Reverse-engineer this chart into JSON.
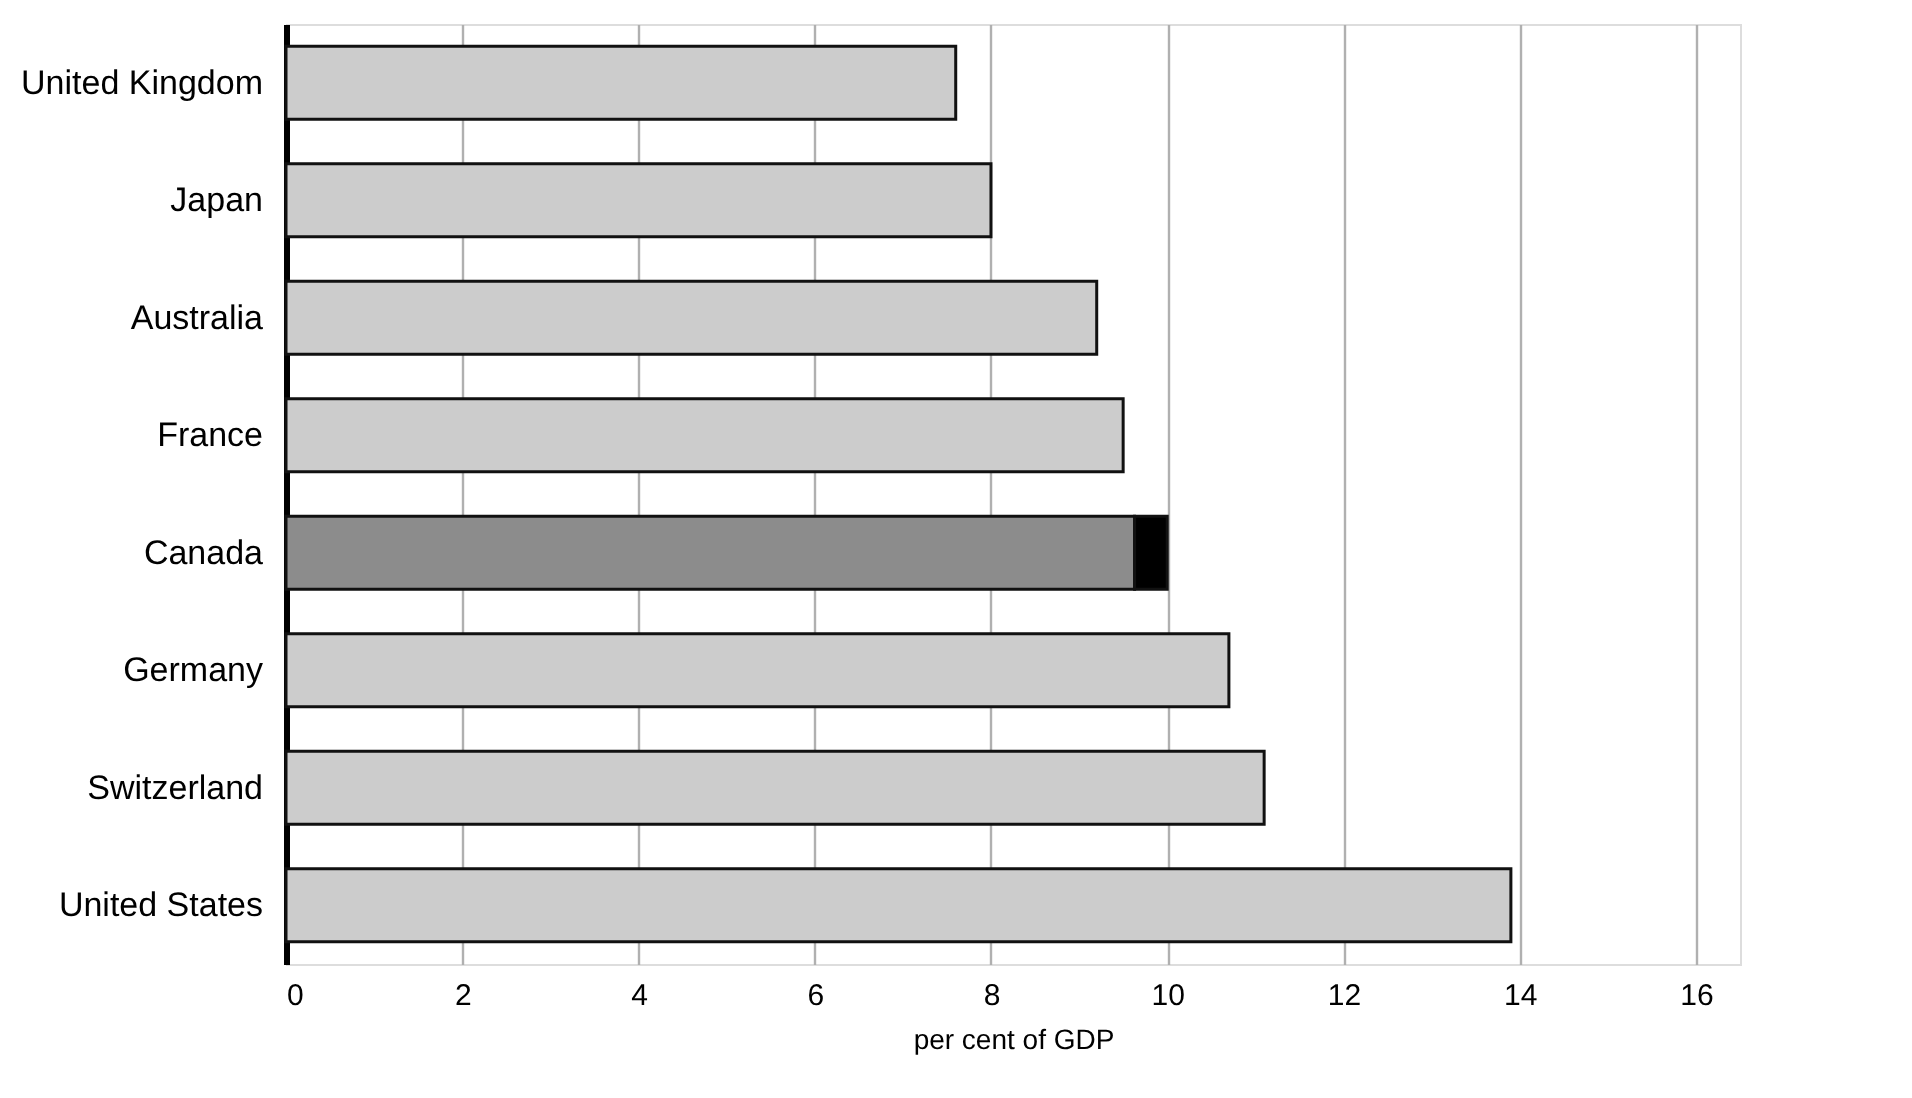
{
  "chart_data": {
    "type": "bar",
    "orientation": "horizontal",
    "stacked": true,
    "categories": [
      "United Kingdom",
      "Japan",
      "Australia",
      "France",
      "Canada",
      "Germany",
      "Switzerland",
      "United States"
    ],
    "series": [
      {
        "colors": [
          "#cccccc",
          "#cccccc",
          "#cccccc",
          "#cccccc",
          "#8c8c8c",
          "#cccccc",
          "#cccccc",
          "#cccccc"
        ],
        "values": [
          7.6,
          8.0,
          9.2,
          9.5,
          9.63,
          10.7,
          11.1,
          13.9
        ]
      },
      {
        "color": "#000000",
        "values": [
          null,
          null,
          null,
          null,
          0.37,
          null,
          null,
          null
        ]
      }
    ],
    "xlabel": "per cent of GDP",
    "xlim": [
      0,
      16.5
    ],
    "xticks": [
      0,
      2,
      4,
      6,
      8,
      10,
      12,
      14,
      16
    ],
    "grid": "x"
  }
}
